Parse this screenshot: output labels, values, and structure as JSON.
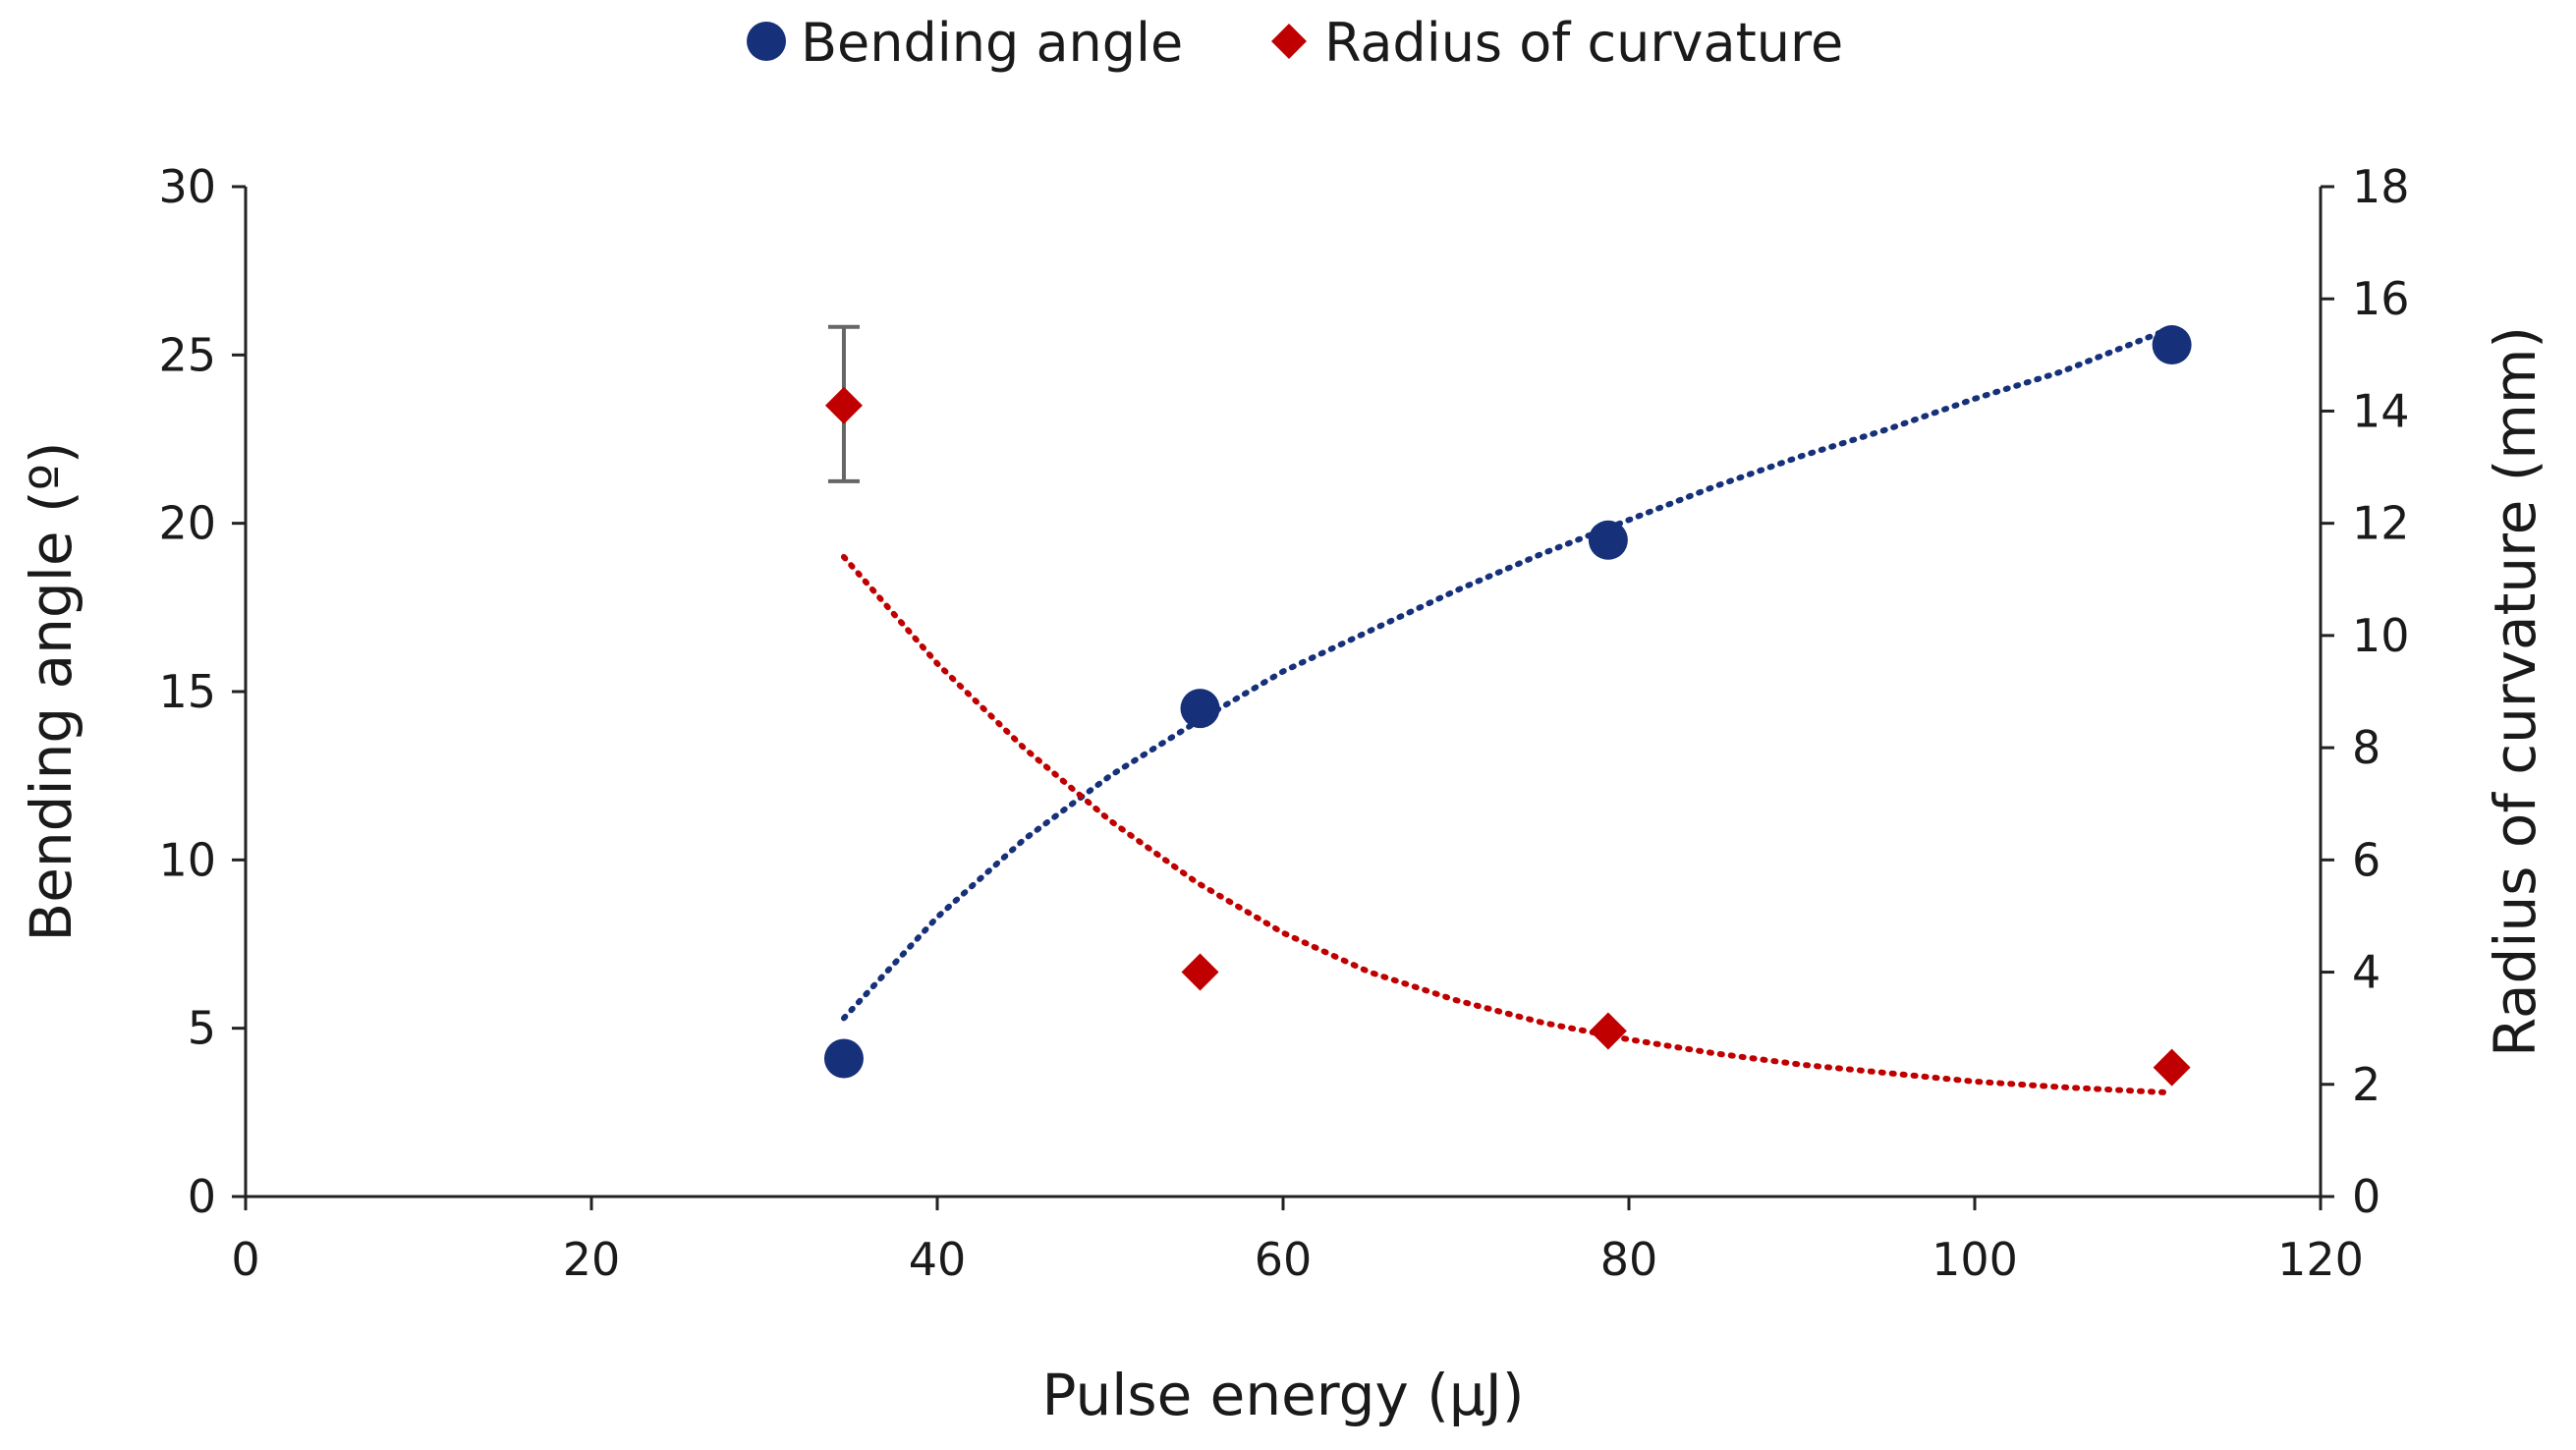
{
  "chart_data": {
    "type": "scatter",
    "title": "",
    "xlabel": "Pulse energy (μJ)",
    "ylabel": "Bending angle (º)",
    "y2label": "Radius of curvature (mm)",
    "xlim": [
      0,
      120
    ],
    "ylim": [
      0,
      30
    ],
    "y2lim": [
      0,
      18
    ],
    "xticks": [
      0,
      20,
      40,
      60,
      80,
      100,
      120
    ],
    "yticks": [
      0,
      5,
      10,
      15,
      20,
      25,
      30
    ],
    "y2ticks": [
      0,
      2,
      4,
      6,
      8,
      10,
      12,
      14,
      16,
      18
    ],
    "grid": false,
    "legend_position": "top-center",
    "series": [
      {
        "name": "Bending angle",
        "axis": "left",
        "marker": "circle",
        "color": "#16307a",
        "x": [
          34.6,
          55.2,
          78.8,
          111.4
        ],
        "y": [
          4.1,
          14.5,
          19.5,
          25.3
        ],
        "trendline": {
          "style": "dotted",
          "x": [
            34.6,
            40,
            45,
            50,
            55,
            60,
            65,
            70,
            75,
            80,
            85,
            90,
            95,
            100,
            105,
            111.4
          ],
          "y": [
            5.3,
            8.3,
            10.6,
            12.5,
            14.1,
            15.6,
            16.8,
            18.0,
            19.1,
            20.1,
            21.1,
            22.0,
            22.8,
            23.7,
            24.5,
            25.8
          ]
        }
      },
      {
        "name": "Radius of curvature",
        "axis": "right",
        "marker": "diamond",
        "color": "#c00000",
        "x": [
          34.6,
          55.2,
          78.8,
          111.4
        ],
        "y": [
          14.1,
          4.0,
          2.95,
          2.3
        ],
        "error_bars": [
          {
            "x": 34.6,
            "low": 12.75,
            "high": 15.5
          }
        ],
        "trendline": {
          "style": "dotted",
          "x": [
            34.6,
            40,
            45,
            50,
            55,
            60,
            65,
            70,
            75,
            80,
            85,
            90,
            95,
            100,
            105,
            111.4
          ],
          "y": [
            11.4,
            9.5,
            8.0,
            6.7,
            5.6,
            4.7,
            4.0,
            3.5,
            3.1,
            2.8,
            2.55,
            2.35,
            2.2,
            2.05,
            1.95,
            1.85
          ]
        }
      }
    ]
  }
}
